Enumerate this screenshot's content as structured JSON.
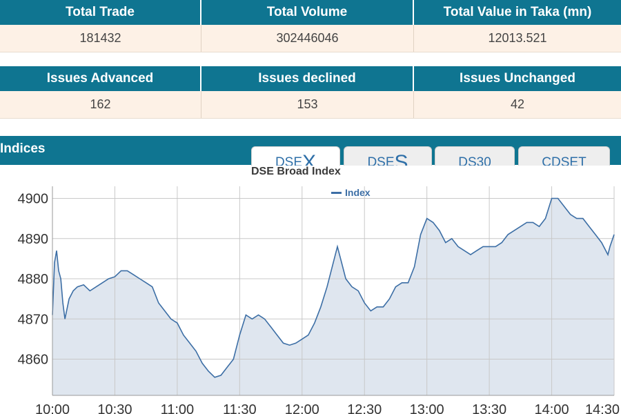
{
  "market_summary": {
    "headers": [
      "Total Trade",
      "Total Volume",
      "Total Value in Taka (mn)"
    ],
    "values": [
      "181432",
      "302446046",
      "12013.521"
    ]
  },
  "issues_summary": {
    "headers": [
      "Issues Advanced",
      "Issues declined",
      "Issues Unchanged"
    ],
    "values": [
      "162",
      "153",
      "42"
    ]
  },
  "indices": {
    "title": "Indices",
    "tabs": [
      {
        "prefix": "DSE",
        "suffix": "X",
        "active": true
      },
      {
        "prefix": "DSE",
        "suffix": "S",
        "active": false
      },
      {
        "label": "DS30",
        "active": false
      },
      {
        "label": "CDSET",
        "active": false
      }
    ]
  },
  "colors": {
    "header_bg": "#0f7591",
    "value_row_bg": "#fdf1e6",
    "series_line": "#3c6ea5",
    "series_fill": "#dfe6ef"
  },
  "chart_data": {
    "type": "area",
    "title": "DSE Broad Index",
    "legend": [
      "Index"
    ],
    "legend_position": "top-center",
    "grid": true,
    "x_ticks": [
      "10:00",
      "10:30",
      "11:00",
      "11:30",
      "12:00",
      "12:30",
      "13:00",
      "13:30",
      "14:00",
      "14:30"
    ],
    "y_ticks": [
      4860,
      4870,
      4880,
      4890,
      4900
    ],
    "xlim": [
      "10:00",
      "14:30"
    ],
    "ylim": [
      4851,
      4903
    ],
    "series": [
      {
        "name": "Index",
        "x": [
          "10:00",
          "10:01",
          "10:02",
          "10:03",
          "10:04",
          "10:05",
          "10:06",
          "10:08",
          "10:10",
          "10:12",
          "10:15",
          "10:18",
          "10:21",
          "10:24",
          "10:27",
          "10:30",
          "10:33",
          "10:36",
          "10:39",
          "10:42",
          "10:45",
          "10:48",
          "10:51",
          "10:54",
          "10:57",
          "11:00",
          "11:03",
          "11:06",
          "11:09",
          "11:12",
          "11:15",
          "11:18",
          "11:21",
          "11:24",
          "11:27",
          "11:30",
          "11:33",
          "11:36",
          "11:39",
          "11:42",
          "11:45",
          "11:48",
          "11:51",
          "11:54",
          "11:57",
          "12:00",
          "12:03",
          "12:06",
          "12:09",
          "12:12",
          "12:15",
          "12:17",
          "12:19",
          "12:21",
          "12:24",
          "12:27",
          "12:30",
          "12:33",
          "12:36",
          "12:39",
          "12:42",
          "12:45",
          "12:48",
          "12:51",
          "12:54",
          "12:57",
          "13:00",
          "13:03",
          "13:06",
          "13:09",
          "13:12",
          "13:15",
          "13:18",
          "13:21",
          "13:24",
          "13:27",
          "13:30",
          "13:33",
          "13:36",
          "13:39",
          "13:42",
          "13:45",
          "13:48",
          "13:51",
          "13:54",
          "13:57",
          "14:00",
          "14:03",
          "14:06",
          "14:09",
          "14:12",
          "14:15",
          "14:18",
          "14:21",
          "14:24",
          "14:27",
          "14:28",
          "14:30"
        ],
        "values": [
          4871,
          4884,
          4887,
          4882,
          4880,
          4874,
          4870,
          4875,
          4877,
          4878,
          4878.5,
          4877,
          4878,
          4879,
          4880,
          4880.5,
          4882,
          4882,
          4881,
          4880,
          4879,
          4878,
          4874,
          4872,
          4870,
          4869,
          4866,
          4864,
          4862,
          4859,
          4857,
          4855.5,
          4856,
          4858,
          4860,
          4866,
          4871,
          4870,
          4871,
          4870,
          4868,
          4866,
          4864,
          4863.5,
          4864,
          4865,
          4866,
          4869,
          4873,
          4878,
          4884,
          4888,
          4884,
          4880,
          4878,
          4877,
          4874,
          4872,
          4873,
          4873,
          4875,
          4878,
          4879,
          4879,
          4883,
          4891,
          4895,
          4894,
          4892,
          4889,
          4890,
          4888,
          4887,
          4886,
          4887,
          4888,
          4888,
          4888,
          4889,
          4891,
          4892,
          4893,
          4894,
          4894,
          4893,
          4895,
          4900,
          4900,
          4898,
          4896,
          4895,
          4895,
          4893,
          4891,
          4889,
          4886,
          4888,
          4891
        ]
      }
    ]
  }
}
